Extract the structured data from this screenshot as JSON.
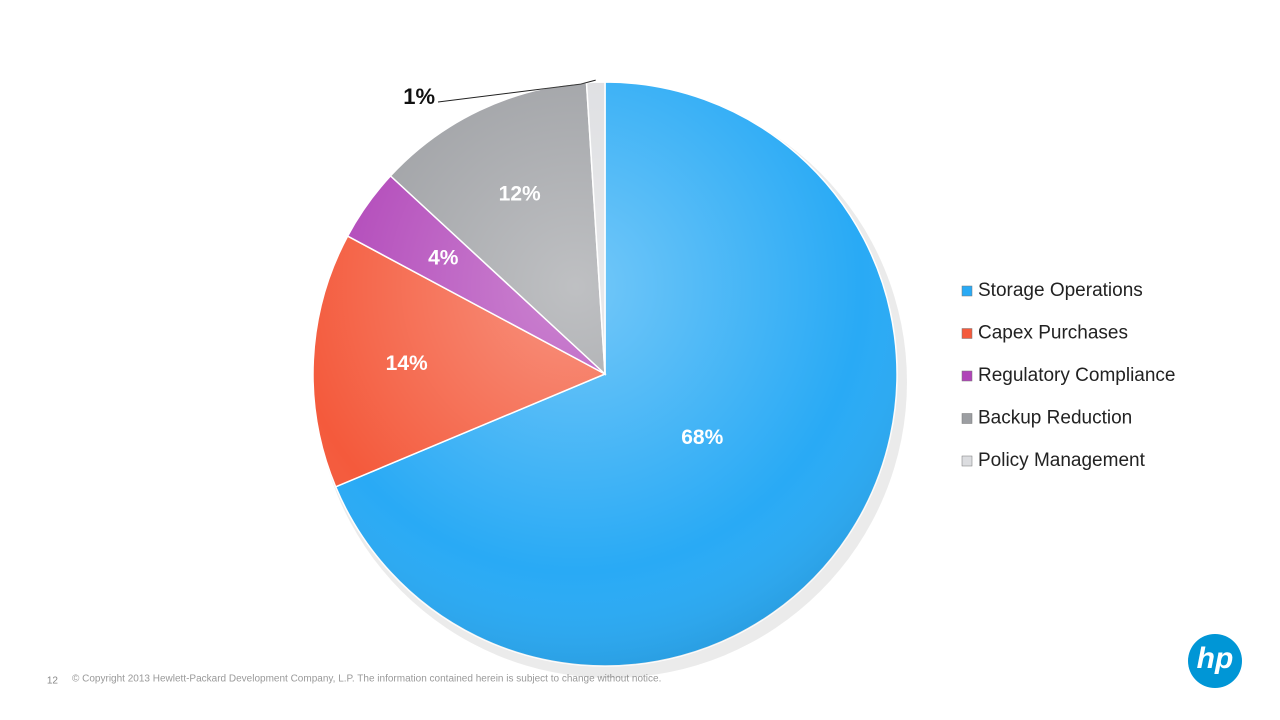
{
  "chart_data": {
    "type": "pie",
    "categories": [
      "Storage Operations",
      "Capex Purchases",
      "Regulatory Compliance",
      "Backup Reduction",
      "Policy Management"
    ],
    "values": [
      68,
      14,
      4,
      12,
      1
    ],
    "value_labels": [
      "68%",
      "14%",
      "4%",
      "12%",
      "1%"
    ],
    "colors": [
      "#29aaf5",
      "#f45a3c",
      "#b044b8",
      "#9c9ea2",
      "#dcdde0"
    ],
    "legend": "right"
  },
  "footer": {
    "page": "12",
    "copyright": "© Copyright 2013 Hewlett-Packard Development Company, L.P.  The information contained herein is subject to change without notice.",
    "logo": "hp"
  }
}
